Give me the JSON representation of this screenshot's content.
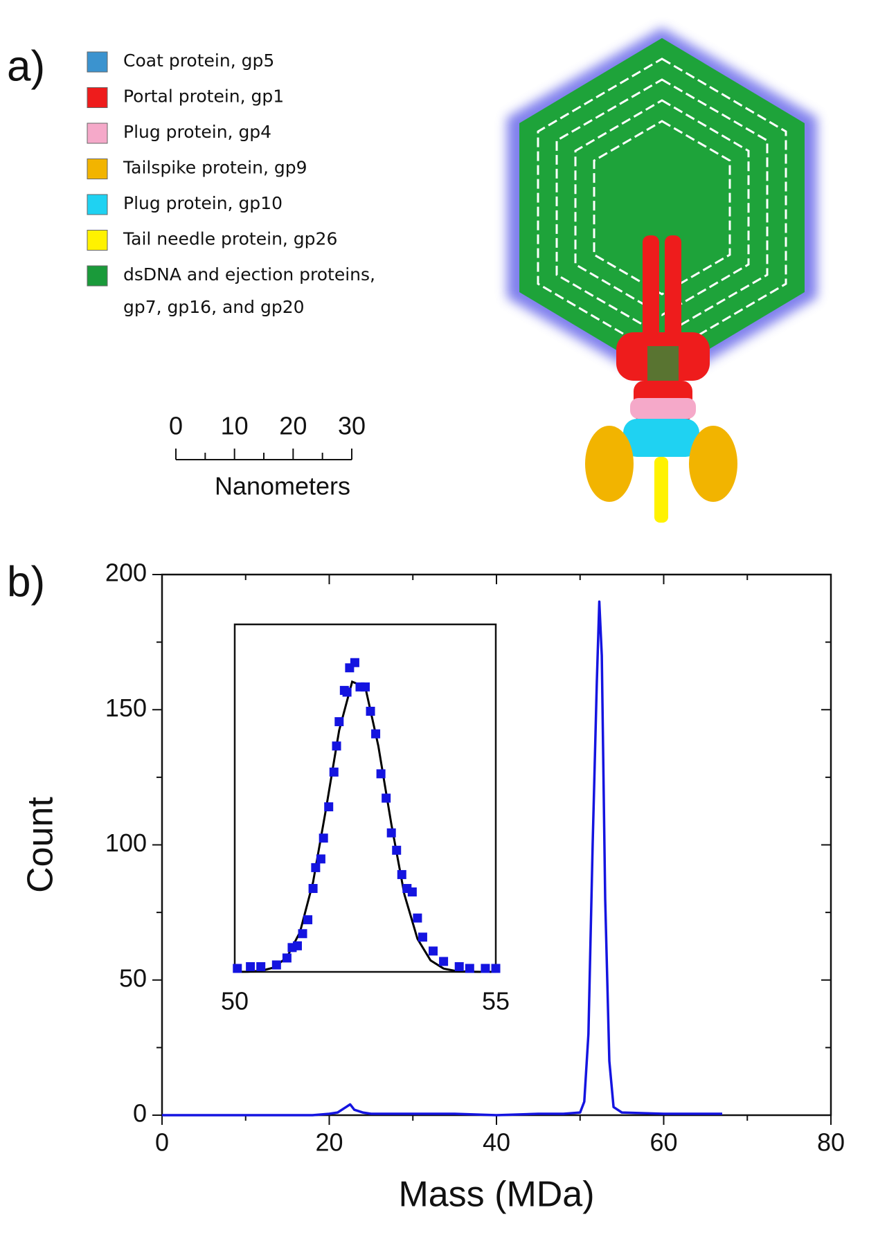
{
  "panel_a": {
    "label": "a)",
    "legend": [
      {
        "lines": [
          "Coat protein, gp5"
        ],
        "color": "#3b93cf"
      },
      {
        "lines": [
          "Portal protein, gp1"
        ],
        "color": "#ee1c1c"
      },
      {
        "lines": [
          "Plug protein, gp4"
        ],
        "color": "#f5a9c9"
      },
      {
        "lines": [
          "Tailspike protein, gp9"
        ],
        "color": "#f2b400"
      },
      {
        "lines": [
          "Plug protein, gp10"
        ],
        "color": "#1fd2f2"
      },
      {
        "lines": [
          "Tail needle protein, gp26"
        ],
        "color": "#fff200"
      },
      {
        "lines": [
          "dsDNA and ejection proteins,",
          "gp7, gp16, and gp20"
        ],
        "color": "#1a9a3a"
      }
    ],
    "scale_bar": {
      "ticks": [
        0,
        10,
        20,
        30
      ],
      "label": "Nanometers"
    }
  },
  "panel_b": {
    "label": "b)"
  },
  "chart_data": [
    {
      "type": "line",
      "xlabel": "Mass (MDa)",
      "ylabel": "Count",
      "color": "#1414e0",
      "x": [
        0,
        5,
        10,
        15,
        18,
        20,
        21,
        22,
        22.5,
        23,
        24,
        25,
        30,
        35,
        40,
        45,
        48,
        50,
        50.5,
        51,
        51.5,
        52,
        52.3,
        52.6,
        53,
        53.5,
        54,
        55,
        60,
        67
      ],
      "values": [
        0,
        0,
        0,
        0,
        0,
        0.5,
        1,
        3,
        4,
        2,
        1,
        0.5,
        0.5,
        0.5,
        0,
        0.5,
        0.5,
        1,
        5,
        30,
        100,
        160,
        190,
        170,
        80,
        20,
        3,
        1,
        0.5,
        0.5
      ],
      "xlim": [
        0,
        80
      ],
      "ylim": [
        0,
        200
      ],
      "xticks": [
        0,
        20,
        40,
        60,
        80
      ],
      "yticks": [
        0,
        50,
        100,
        150,
        200
      ]
    },
    {
      "type": "scatter",
      "color": "#1414e0",
      "x": [
        50.05,
        50.3,
        50.5,
        50.8,
        51.0,
        51.1,
        51.2,
        51.3,
        51.4,
        51.5,
        51.55,
        51.65,
        51.7,
        51.8,
        51.9,
        51.95,
        52.0,
        52.1,
        52.15,
        52.2,
        52.3,
        52.4,
        52.5,
        52.6,
        52.7,
        52.8,
        52.9,
        53.0,
        53.1,
        53.2,
        53.3,
        53.4,
        53.5,
        53.6,
        53.8,
        54.0,
        54.3,
        54.5,
        54.8,
        55.0
      ],
      "values": [
        2,
        3,
        3,
        4,
        8,
        14,
        15,
        22,
        30,
        48,
        60,
        65,
        77,
        95,
        115,
        130,
        144,
        162,
        161,
        175,
        178,
        164,
        164,
        150,
        137,
        114,
        100,
        80,
        70,
        56,
        48,
        46,
        31,
        20,
        12,
        6,
        3,
        2,
        2,
        2
      ],
      "fit": {
        "color": "#000000",
        "x": [
          50,
          50.25,
          50.5,
          50.75,
          51,
          51.25,
          51.5,
          51.75,
          52,
          52.25,
          52.5,
          52.75,
          53,
          53.25,
          53.5,
          53.75,
          54,
          54.25,
          54.5,
          54.75,
          55
        ],
        "values": [
          0,
          0.1,
          0.6,
          2.5,
          8.4,
          23,
          51.6,
          94,
          139,
          167,
          164,
          130,
          85,
          44.6,
          19,
          6.6,
          1.9,
          0.4,
          0.1,
          0,
          0
        ]
      },
      "xlim": [
        50,
        55
      ],
      "ylim": [
        0,
        200
      ],
      "xticks": [
        50,
        55
      ]
    }
  ]
}
